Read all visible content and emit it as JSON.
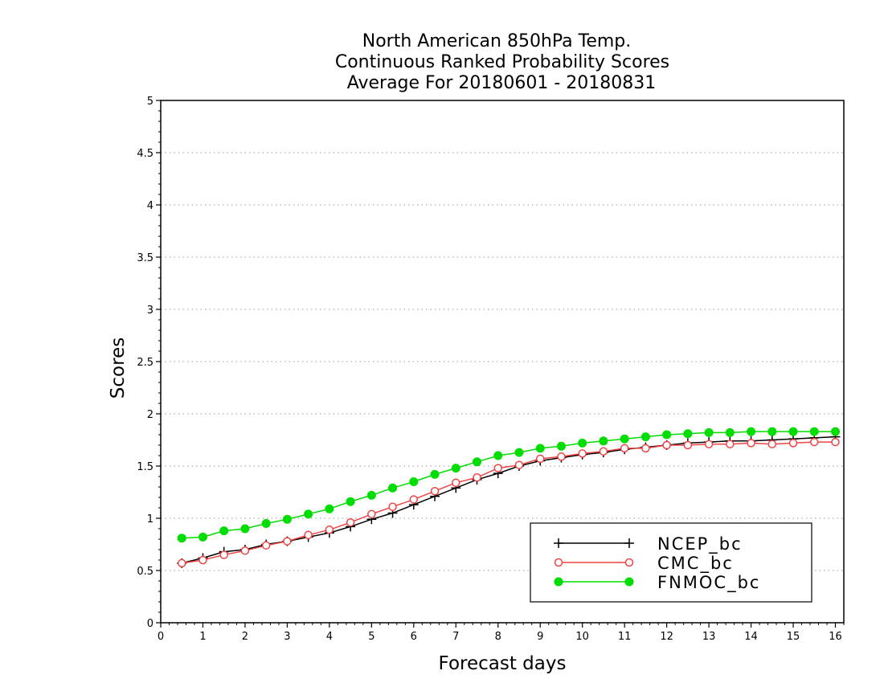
{
  "chart_data": {
    "type": "line",
    "title": [
      "North American 850hPa Temp.",
      "Continuous Ranked Probability Scores",
      "Average For 20180601 - 20180831"
    ],
    "xlabel": "Forecast days",
    "ylabel": "Scores",
    "xlim": [
      0,
      16.2
    ],
    "ylim": [
      0,
      5
    ],
    "xticks": [
      "0",
      "1",
      "2",
      "3",
      "4",
      "5",
      "6",
      "7",
      "8",
      "9",
      "10",
      "11",
      "12",
      "13",
      "14",
      "15",
      "16"
    ],
    "yticks": [
      "0",
      "0.5",
      "1",
      "1.5",
      "2",
      "2.5",
      "3",
      "3.5",
      "4",
      "4.5",
      "5"
    ],
    "grid": "horizontal-dotted",
    "legend_position": "bottom-right",
    "x": [
      0.5,
      1,
      1.5,
      2,
      2.5,
      3,
      3.5,
      4,
      4.5,
      5,
      5.5,
      6,
      6.5,
      7,
      7.5,
      8,
      8.5,
      9,
      9.5,
      10,
      10.5,
      11,
      11.5,
      12,
      12.5,
      13,
      13.5,
      14,
      14.5,
      15,
      15.5,
      16
    ],
    "series": [
      {
        "name": "NCEP_bc",
        "color": "#000000",
        "marker": "plus",
        "values": [
          0.57,
          0.62,
          0.68,
          0.7,
          0.75,
          0.78,
          0.82,
          0.86,
          0.92,
          0.99,
          1.05,
          1.13,
          1.21,
          1.29,
          1.37,
          1.43,
          1.5,
          1.55,
          1.58,
          1.61,
          1.63,
          1.66,
          1.68,
          1.7,
          1.72,
          1.73,
          1.74,
          1.74,
          1.75,
          1.76,
          1.77,
          1.78
        ]
      },
      {
        "name": "CMC_bc",
        "color": "#ee4444",
        "marker": "open-circle",
        "values": [
          0.57,
          0.6,
          0.65,
          0.69,
          0.74,
          0.78,
          0.84,
          0.89,
          0.96,
          1.04,
          1.11,
          1.18,
          1.26,
          1.34,
          1.39,
          1.48,
          1.51,
          1.57,
          1.59,
          1.62,
          1.64,
          1.67,
          1.67,
          1.7,
          1.7,
          1.71,
          1.71,
          1.72,
          1.71,
          1.72,
          1.73,
          1.73
        ]
      },
      {
        "name": "FNMOC_bc",
        "color": "#00dd00",
        "marker": "filled-circle",
        "values": [
          0.81,
          0.82,
          0.88,
          0.9,
          0.95,
          0.99,
          1.04,
          1.09,
          1.16,
          1.22,
          1.29,
          1.35,
          1.42,
          1.48,
          1.54,
          1.6,
          1.63,
          1.67,
          1.69,
          1.72,
          1.74,
          1.76,
          1.78,
          1.8,
          1.81,
          1.82,
          1.82,
          1.83,
          1.83,
          1.83,
          1.83,
          1.83
        ]
      }
    ]
  }
}
